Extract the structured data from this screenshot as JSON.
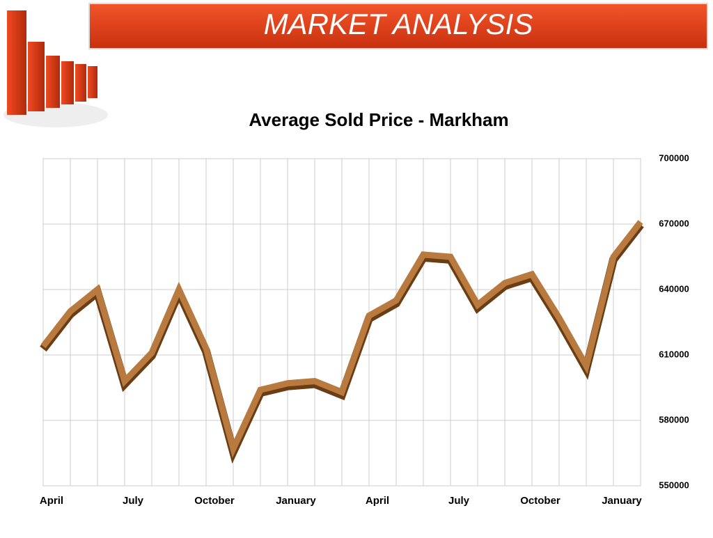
{
  "header": {
    "title": "MARKET ANALYSIS"
  },
  "chart_data": {
    "type": "line",
    "title": "Average Sold Price - Markham",
    "categories": [
      "April",
      null,
      null,
      "July",
      null,
      null,
      "October",
      null,
      null,
      "January",
      null,
      null,
      "April",
      null,
      null,
      "July",
      null,
      null,
      "October",
      null,
      null,
      "January",
      null
    ],
    "series": [
      {
        "name": "Average Sold Price",
        "color": "#b87a3e",
        "values": [
          614000,
          630000,
          640000,
          598000,
          611000,
          640000,
          613000,
          567000,
          594000,
          597000,
          598000,
          593000,
          628000,
          635000,
          656000,
          655000,
          633000,
          643000,
          647000,
          627000,
          605000,
          655000,
          671000
        ]
      }
    ],
    "ylim": [
      550000,
      700000
    ],
    "yticks": [
      550000,
      580000,
      610000,
      640000,
      670000,
      700000
    ],
    "grid": true
  }
}
